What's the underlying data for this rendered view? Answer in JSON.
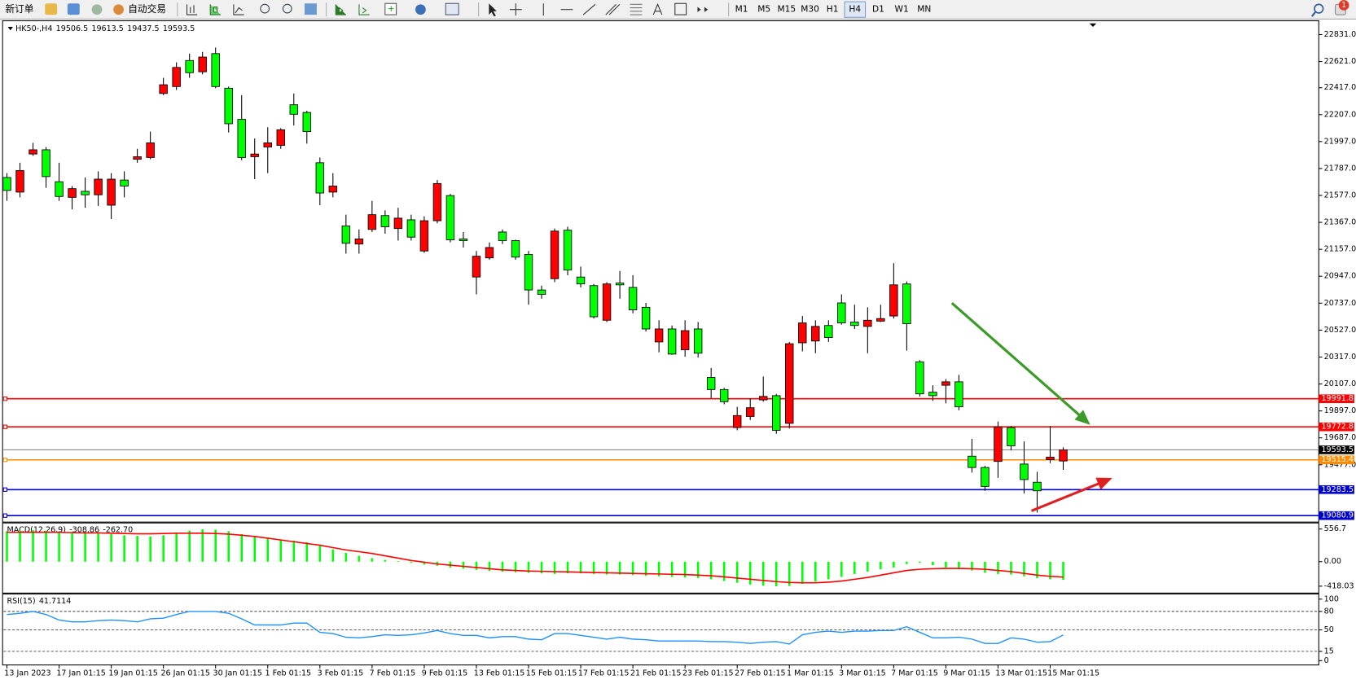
{
  "toolbar": {
    "new_order": "新订单",
    "auto_trading": "自动交易",
    "timeframes": [
      "M1",
      "M5",
      "M15",
      "M30",
      "H1",
      "H4",
      "D1",
      "W1",
      "MN"
    ],
    "notifications": "1"
  },
  "chart_data": [
    {
      "type": "candlestick",
      "symbol": "HK50-,H4",
      "categories": [
        "13 Jan 2023",
        null,
        null,
        null,
        "17 Jan 01:15",
        null,
        null,
        null,
        "19 Jan 01:15",
        null,
        null,
        null,
        "26 Jan 01:15",
        null,
        null,
        null,
        "30 Jan 01:15",
        null,
        null,
        null,
        "1 Feb 01:15",
        null,
        null,
        null,
        "3 Feb 01:15",
        null,
        null,
        null,
        "7 Feb 01:15",
        null,
        null,
        null,
        "9 Feb 01:15",
        null,
        null,
        null,
        "13 Feb 01:15",
        null,
        null,
        null,
        "15 Feb 01:15",
        null,
        null,
        null,
        "17 Feb 01:15",
        null,
        null,
        null,
        "21 Feb 01:15",
        null,
        null,
        null,
        "23 Feb 01:15",
        null,
        null,
        null,
        "27 Feb 01:15",
        null,
        null,
        null,
        "1 Mar 01:15",
        null,
        null,
        null,
        "3 Mar 01:15",
        null,
        null,
        null,
        "7 Mar 01:15",
        null,
        null,
        null,
        "9 Mar 01:15",
        null,
        null,
        null,
        "13 Mar 01:15",
        null,
        null,
        null,
        "15 Mar 01:15",
        null
      ],
      "open": [
        21717,
        21603,
        21900,
        21933,
        21684,
        21562,
        21609,
        21582,
        21501,
        21697,
        21859,
        21873,
        22372,
        22426,
        22629,
        22541,
        22683,
        22413,
        22170,
        21879,
        21954,
        21967,
        22284,
        22224,
        21832,
        21603,
        21339,
        21198,
        21312,
        21420,
        21319,
        21387,
        21144,
        21380,
        21576,
        21238,
        20941,
        21090,
        21292,
        21225,
        21117,
        20840,
        20928,
        21306,
        20941,
        20874,
        20604,
        20894,
        20860,
        20705,
        20435,
        20536,
        20374,
        20536,
        20158,
        20064,
        19767,
        19854,
        19983,
        20016,
        19800,
        20428,
        20442,
        20563,
        20739,
        20590,
        20556,
        20597,
        20637,
        20887,
        20280,
        20043,
        20097,
        20124,
        19544,
        19456,
        19503,
        19767,
        19483,
        19341,
        19517,
        19506.5
      ],
      "high": [
        21751,
        21832,
        21987,
        21954,
        21832,
        21650,
        21717,
        21765,
        21751,
        21765,
        21940,
        22075,
        22494,
        22615,
        22683,
        22696,
        22730,
        22426,
        22359,
        22021,
        22109,
        22102,
        22372,
        22237,
        21873,
        21751,
        21427,
        21312,
        21535,
        21461,
        21481,
        21427,
        21414,
        21697,
        21589,
        21292,
        21144,
        21211,
        21312,
        21231,
        21144,
        20874,
        21319,
        21333,
        21022,
        20887,
        20901,
        20988,
        20955,
        20739,
        20604,
        20563,
        20604,
        20590,
        20232,
        20077,
        19929,
        19996,
        20165,
        20030,
        20435,
        20637,
        20604,
        20604,
        20806,
        20725,
        20705,
        20725,
        21049,
        20907,
        20293,
        20097,
        20145,
        20178,
        19679,
        19470,
        19814,
        19780,
        19659,
        19422,
        19780,
        19613.5
      ],
      "low": [
        21535,
        21562,
        21886,
        21636,
        21535,
        21468,
        21481,
        21495,
        21393,
        21562,
        21832,
        21859,
        22359,
        22399,
        22494,
        22521,
        22413,
        22068,
        21852,
        21704,
        21751,
        21940,
        22122,
        21981,
        21501,
        21562,
        21123,
        21123,
        21292,
        21279,
        21225,
        21225,
        21130,
        21360,
        21211,
        21171,
        20806,
        21076,
        21198,
        21076,
        20725,
        20772,
        20901,
        20955,
        20860,
        20617,
        20590,
        20772,
        20658,
        20516,
        20354,
        20334,
        20320,
        20313,
        19996,
        19949,
        19746,
        19827,
        19969,
        19719,
        19760,
        20361,
        20347,
        20435,
        20570,
        20536,
        20347,
        20590,
        20617,
        20367,
        20010,
        19976,
        19956,
        19902,
        19416,
        19274,
        19375,
        19591,
        19254,
        19105,
        19490,
        19437.5
      ],
      "close": [
        21616,
        21771,
        21933,
        21724,
        21569,
        21630,
        21582,
        21704,
        21704,
        21650,
        21879,
        21987,
        22440,
        22575,
        22534,
        22656,
        22426,
        22136,
        21873,
        21900,
        21987,
        22089,
        22210,
        22075,
        21596,
        21650,
        21204,
        21238,
        21427,
        21333,
        21400,
        21252,
        21380,
        21670,
        21231,
        21225,
        21103,
        21171,
        21225,
        21096,
        20840,
        20806,
        21299,
        20995,
        20887,
        20631,
        20887,
        20880,
        20685,
        20536,
        20536,
        20340,
        20523,
        20347,
        20064,
        19969,
        19861,
        19922,
        20010,
        19746,
        20421,
        20583,
        20556,
        20469,
        20583,
        20563,
        20604,
        20617,
        20880,
        20577,
        20030,
        20016,
        20124,
        19929,
        19456,
        19308,
        19773,
        19625,
        19362,
        19274,
        19537,
        19593.5
      ],
      "up_color": "#ff0000",
      "down_color": "#00ff00",
      "ylim": [
        19037,
        22932
      ],
      "yticks": [
        {
          "value": 22831,
          "label": "22831.0"
        },
        {
          "value": 22621,
          "label": "22621.0"
        },
        {
          "value": 22417,
          "label": "22417.0"
        },
        {
          "value": 22207,
          "label": "22207.0"
        },
        {
          "value": 21997,
          "label": "21997.0"
        },
        {
          "value": 21787,
          "label": "21787.0"
        },
        {
          "value": 21577,
          "label": "21577.0"
        },
        {
          "value": 21367,
          "label": "21367.0"
        },
        {
          "value": 21157,
          "label": "21157.0"
        },
        {
          "value": 20947,
          "label": "20947.0"
        },
        {
          "value": 20737,
          "label": "20737.0"
        },
        {
          "value": 20527,
          "label": "20527.0"
        },
        {
          "value": 20317,
          "label": "20317.0"
        },
        {
          "value": 20107,
          "label": "20107.0"
        },
        {
          "value": 19897,
          "label": "19897.0"
        },
        {
          "value": 19687,
          "label": "19687.0"
        },
        {
          "value": 19477,
          "label": "19477.0"
        }
      ],
      "levels": [
        {
          "value": 19991.8,
          "color": "#ff0000"
        },
        {
          "value": 19772.8,
          "color": "#ff0000"
        },
        {
          "value": 19515.4,
          "color": "#ff8c00"
        },
        {
          "value": 19283.5,
          "color": "#0000cd"
        },
        {
          "value": 19080.9,
          "color": "#0000cd"
        }
      ]
    },
    {
      "type": "macd",
      "label": "MACD(12,26,9)",
      "legend_values": [
        "-308.86",
        "-262.70"
      ],
      "histogram": [
        520,
        530,
        540,
        530,
        510,
        500,
        490,
        480,
        470,
        450,
        440,
        430,
        450,
        490,
        530,
        550,
        545,
        520,
        470,
        430,
        400,
        380,
        360,
        330,
        270,
        210,
        150,
        100,
        60,
        30,
        10,
        -20,
        -50,
        -70,
        -100,
        -120,
        -140,
        -160,
        -170,
        -180,
        -190,
        -200,
        -210,
        -200,
        -200,
        -210,
        -220,
        -220,
        -230,
        -240,
        -250,
        -260,
        -270,
        -280,
        -300,
        -330,
        -360,
        -390,
        -410,
        -420,
        -415,
        -380,
        -340,
        -300,
        -260,
        -210,
        -170,
        -130,
        -100,
        -40,
        -20,
        -60,
        -100,
        -130,
        -150,
        -190,
        -210,
        -220,
        -250,
        -280,
        -300,
        -308.86
      ],
      "signal": [
        500,
        500,
        500,
        500,
        500,
        495,
        490,
        490,
        485,
        480,
        475,
        475,
        480,
        485,
        485,
        485,
        480,
        470,
        450,
        430,
        400,
        370,
        340,
        310,
        280,
        240,
        200,
        170,
        140,
        100,
        60,
        20,
        -10,
        -40,
        -60,
        -80,
        -100,
        -120,
        -140,
        -150,
        -160,
        -165,
        -170,
        -175,
        -180,
        -185,
        -190,
        -195,
        -200,
        -205,
        -210,
        -215,
        -220,
        -230,
        -240,
        -260,
        -280,
        -300,
        -320,
        -340,
        -355,
        -360,
        -360,
        -350,
        -330,
        -300,
        -270,
        -230,
        -190,
        -150,
        -130,
        -120,
        -115,
        -115,
        -120,
        -130,
        -150,
        -170,
        -200,
        -230,
        -250,
        -262.7
      ],
      "color": "#00ff00",
      "signal_color": "#ff0000",
      "ylim": [
        -536,
        660
      ],
      "yticks": [
        556.7,
        {
          "value": 0,
          "label": "0.00"
        },
        -418.03
      ]
    },
    {
      "type": "line",
      "label": "RSI(15)",
      "values": [
        75,
        77,
        80,
        75,
        66,
        63,
        63,
        65,
        66,
        65,
        63,
        68,
        69,
        75,
        80,
        80,
        80,
        77,
        68,
        58,
        58,
        58,
        61,
        61,
        46,
        44,
        38,
        37,
        39,
        42,
        41,
        42,
        45,
        49,
        44,
        41,
        41,
        37,
        39,
        39,
        35,
        34,
        44,
        44,
        41,
        38,
        35,
        38,
        35,
        34,
        32,
        32,
        32,
        32,
        31,
        31,
        30,
        28,
        30,
        31,
        27,
        42,
        46,
        48,
        46,
        48,
        48,
        49,
        49,
        55,
        46,
        37,
        37,
        38,
        35,
        28,
        28,
        37,
        35,
        30,
        31,
        41.7114
      ],
      "color": "#1e90ff",
      "ylim": [
        -7,
        107
      ],
      "yticks": [
        100,
        80,
        50,
        15,
        0
      ],
      "levels": [
        80,
        50,
        15
      ]
    }
  ]
}
